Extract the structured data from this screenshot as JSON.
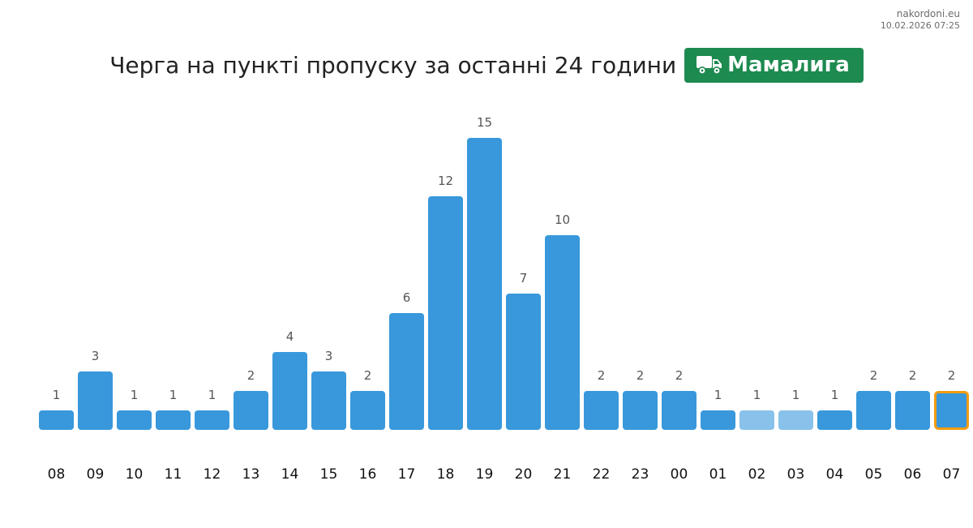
{
  "meta": {
    "site": "nakordoni.eu",
    "timestamp": "10.02.2026 07:25"
  },
  "header": {
    "title": "Черга на пункті пропуску за останні 24 години",
    "checkpoint": "Мамалига",
    "checkpoint_icon": "truck-icon",
    "badge_color": "#1d8a50"
  },
  "chart_data": {
    "type": "bar",
    "title": "Черга на пункті пропуску за останні 24 години",
    "xlabel": "",
    "ylabel": "",
    "ylim": [
      0,
      15
    ],
    "grid": false,
    "categories": [
      "08",
      "09",
      "10",
      "11",
      "12",
      "13",
      "14",
      "15",
      "16",
      "17",
      "18",
      "19",
      "20",
      "21",
      "22",
      "23",
      "00",
      "01",
      "02",
      "03",
      "04",
      "05",
      "06",
      "07"
    ],
    "values": [
      1,
      3,
      1,
      1,
      1,
      2,
      4,
      3,
      2,
      6,
      12,
      15,
      7,
      10,
      2,
      2,
      2,
      1,
      1,
      1,
      1,
      2,
      2,
      2
    ],
    "highlighted_light": [
      "02",
      "03"
    ],
    "current": "07",
    "colors": {
      "bar": "#3898db",
      "bar_light": "#88c1e9",
      "current_outline": "#f39c12",
      "value_label": "#555555",
      "tick_label": "#111111"
    }
  }
}
